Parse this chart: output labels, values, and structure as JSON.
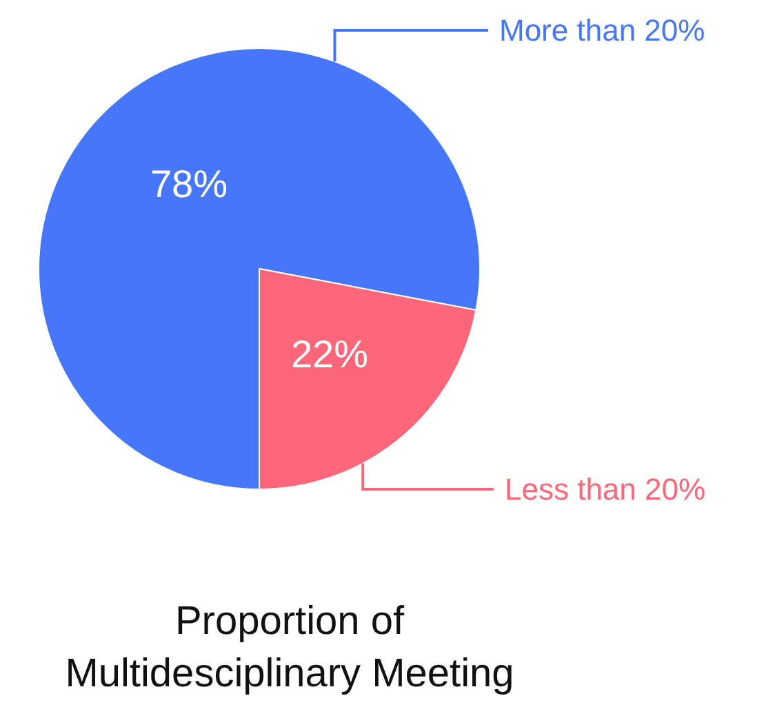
{
  "chart_data": {
    "type": "pie",
    "title": "Proportion of Multidesciplinary Meeting",
    "categories": [
      "More than 20%",
      "Less than 20%"
    ],
    "values": [
      78,
      22
    ],
    "value_labels": [
      "78%",
      "22%"
    ],
    "colors": [
      "#4677fb",
      "#ff6678"
    ]
  }
}
